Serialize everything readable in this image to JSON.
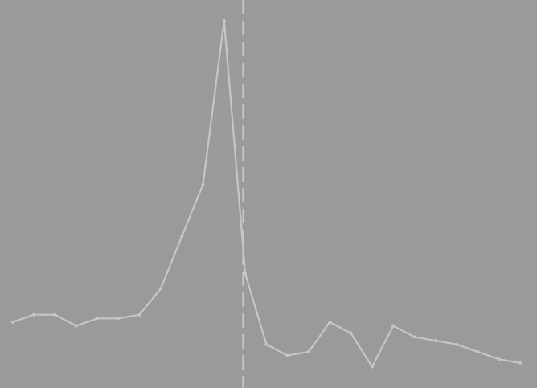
{
  "chart_data": {
    "type": "line",
    "title": "",
    "xlabel": "",
    "ylabel": "",
    "grid": false,
    "legend": "none",
    "x": [
      0,
      1,
      2,
      3,
      4,
      5,
      6,
      7,
      8,
      9,
      10,
      11,
      12,
      13,
      14,
      15,
      16,
      17,
      18,
      19,
      20,
      21,
      22,
      23,
      24
    ],
    "xlim": [
      -0.6,
      24.8
    ],
    "ylim": [
      0,
      1
    ],
    "series": [
      {
        "values": [
          0.16,
          0.18,
          0.18,
          0.15,
          0.17,
          0.17,
          0.18,
          0.25,
          0.39,
          0.53,
          0.97,
          0.29,
          0.1,
          0.07,
          0.08,
          0.16,
          0.13,
          0.04,
          0.15,
          0.12,
          0.11,
          0.1,
          0.08,
          0.06,
          0.05
        ],
        "color": "#c6c7c4"
      }
    ],
    "marker_x": 10.9,
    "colors": {
      "background": "#9a9b99",
      "line": "#c6c7c4",
      "marker": "#c9cac7"
    }
  }
}
